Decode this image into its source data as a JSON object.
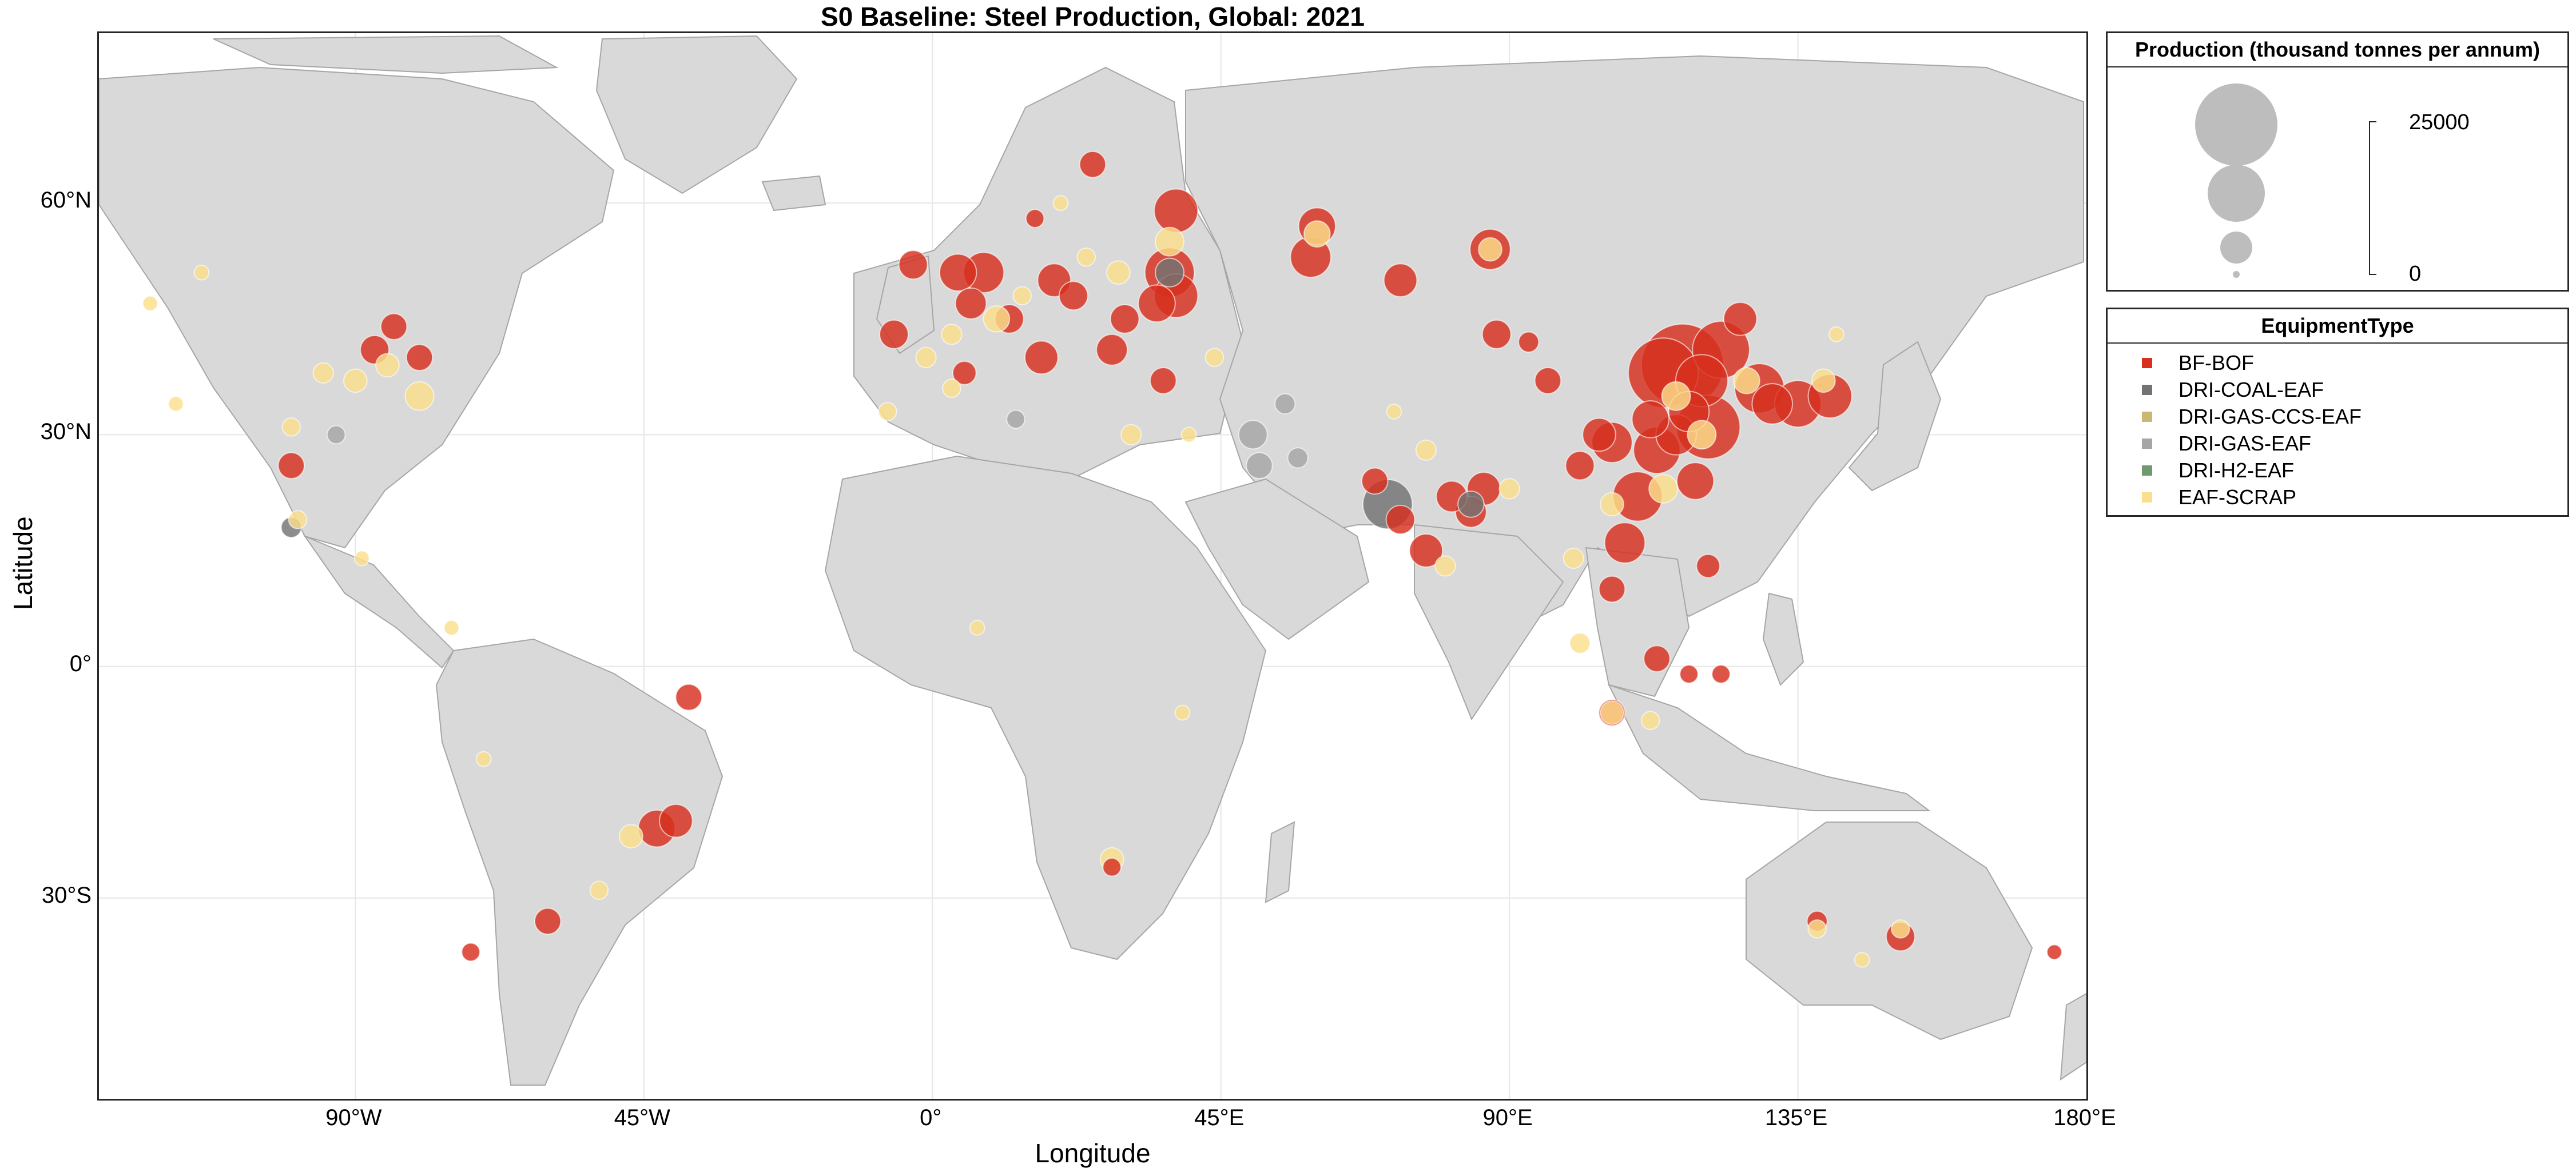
{
  "title": "S0 Baseline: Steel Production, Global: 2021",
  "axes": {
    "xlabel": "Longitude",
    "ylabel": "Latitude",
    "xticks": [
      {
        "lon": -90,
        "label": "90°W"
      },
      {
        "lon": -45,
        "label": "45°W"
      },
      {
        "lon": 0,
        "label": "0°"
      },
      {
        "lon": 45,
        "label": "45°E"
      },
      {
        "lon": 90,
        "label": "90°E"
      },
      {
        "lon": 135,
        "label": "135°E"
      },
      {
        "lon": 180,
        "label": "180°E"
      }
    ],
    "yticks": [
      {
        "lat": 60,
        "label": "60°N"
      },
      {
        "lat": 30,
        "label": "30°N"
      },
      {
        "lat": 0,
        "label": "0°"
      },
      {
        "lat": -30,
        "label": "30°S"
      }
    ],
    "lon_range": [
      -130,
      180
    ],
    "lat_range": [
      -56,
      82
    ]
  },
  "size_legend": {
    "title": "Production (thousand tonnes per annum)",
    "max_label": "25000",
    "min_label": "0"
  },
  "type_legend": {
    "title": "EquipmentType",
    "items": [
      {
        "label": "BF-BOF",
        "color": "#d7301f"
      },
      {
        "label": "DRI-COAL-EAF",
        "color": "#737373"
      },
      {
        "label": "DRI-GAS-CCS-EAF",
        "color": "#c9b873"
      },
      {
        "label": "DRI-GAS-EAF",
        "color": "#a6a6a6"
      },
      {
        "label": "DRI-H2-EAF",
        "color": "#6f9a6f"
      },
      {
        "label": "EAF-SCRAP",
        "color": "#fbdf8c"
      }
    ]
  },
  "colors": {
    "land": "#d9d9d9",
    "ocean": "#ffffff",
    "border": "#a6a6a6",
    "grid": "#e6e6e6"
  },
  "chart_data": {
    "type": "scatter",
    "x_field": "longitude",
    "y_field": "latitude",
    "size_field": "production_kt",
    "points": [
      {
        "lon": 117,
        "lat": 39,
        "kt": 25000,
        "type": "BF-BOF"
      },
      {
        "lon": 114,
        "lat": 38,
        "kt": 18000,
        "type": "BF-BOF"
      },
      {
        "lon": 121,
        "lat": 31,
        "kt": 15000,
        "type": "BF-BOF"
      },
      {
        "lon": 123,
        "lat": 41,
        "kt": 12000,
        "type": "BF-BOF"
      },
      {
        "lon": 120,
        "lat": 37,
        "kt": 10000,
        "type": "BF-BOF"
      },
      {
        "lon": 113,
        "lat": 28,
        "kt": 8000,
        "type": "BF-BOF"
      },
      {
        "lon": 110,
        "lat": 22,
        "kt": 9000,
        "type": "BF-BOF"
      },
      {
        "lon": 108,
        "lat": 16,
        "kt": 6000,
        "type": "BF-BOF"
      },
      {
        "lon": 106,
        "lat": 29,
        "kt": 6000,
        "type": "BF-BOF"
      },
      {
        "lon": 119,
        "lat": 24,
        "kt": 5000,
        "type": "BF-BOF"
      },
      {
        "lon": 126,
        "lat": 45,
        "kt": 4000,
        "type": "BF-BOF"
      },
      {
        "lon": 129,
        "lat": 36,
        "kt": 9000,
        "type": "BF-BOF"
      },
      {
        "lon": 135,
        "lat": 34,
        "kt": 8000,
        "type": "BF-BOF"
      },
      {
        "lon": 140,
        "lat": 35,
        "kt": 7000,
        "type": "BF-BOF"
      },
      {
        "lon": 131,
        "lat": 34,
        "kt": 6000,
        "type": "BF-BOF"
      },
      {
        "lon": 112,
        "lat": 32,
        "kt": 5000,
        "type": "BF-BOF"
      },
      {
        "lon": 104,
        "lat": 30,
        "kt": 4000,
        "type": "BF-BOF"
      },
      {
        "lon": 101,
        "lat": 26,
        "kt": 3000,
        "type": "BF-BOF"
      },
      {
        "lon": 116,
        "lat": 30,
        "kt": 6000,
        "type": "BF-BOF"
      },
      {
        "lon": 118,
        "lat": 33,
        "kt": 6000,
        "type": "BF-BOF"
      },
      {
        "lon": 96,
        "lat": 37,
        "kt": 2500,
        "type": "BF-BOF"
      },
      {
        "lon": 88,
        "lat": 43,
        "kt": 3000,
        "type": "BF-BOF"
      },
      {
        "lon": 93,
        "lat": 42,
        "kt": 1500,
        "type": "BF-BOF"
      },
      {
        "lon": 121,
        "lat": 13,
        "kt": 2000,
        "type": "BF-BOF"
      },
      {
        "lon": 106,
        "lat": 10,
        "kt": 2500,
        "type": "BF-BOF"
      },
      {
        "lon": 113,
        "lat": 1,
        "kt": 2500,
        "type": "BF-BOF"
      },
      {
        "lon": 118,
        "lat": -1,
        "kt": 1200,
        "type": "BF-BOF"
      },
      {
        "lon": 123,
        "lat": -1,
        "kt": 1200,
        "type": "BF-BOF"
      },
      {
        "lon": 106,
        "lat": -6,
        "kt": 2500,
        "type": "BF-BOF"
      },
      {
        "lon": 151,
        "lat": -35,
        "kt": 3000,
        "type": "BF-BOF"
      },
      {
        "lon": 138,
        "lat": -33,
        "kt": 1500,
        "type": "BF-BOF"
      },
      {
        "lon": 175,
        "lat": -37,
        "kt": 800,
        "type": "BF-BOF"
      },
      {
        "lon": 86,
        "lat": 23,
        "kt": 4000,
        "type": "BF-BOF"
      },
      {
        "lon": 84,
        "lat": 20,
        "kt": 3500,
        "type": "BF-BOF"
      },
      {
        "lon": 81,
        "lat": 22,
        "kt": 3500,
        "type": "BF-BOF"
      },
      {
        "lon": 77,
        "lat": 15,
        "kt": 4000,
        "type": "BF-BOF"
      },
      {
        "lon": 73,
        "lat": 19,
        "kt": 3000,
        "type": "BF-BOF"
      },
      {
        "lon": 69,
        "lat": 24,
        "kt": 2500,
        "type": "BF-BOF"
      },
      {
        "lon": 87,
        "lat": 54,
        "kt": 6000,
        "type": "BF-BOF"
      },
      {
        "lon": 73,
        "lat": 50,
        "kt": 4000,
        "type": "BF-BOF"
      },
      {
        "lon": 60,
        "lat": 57,
        "kt": 5000,
        "type": "BF-BOF"
      },
      {
        "lon": 59,
        "lat": 53,
        "kt": 6000,
        "type": "BF-BOF"
      },
      {
        "lon": 38,
        "lat": 59,
        "kt": 7000,
        "type": "BF-BOF"
      },
      {
        "lon": 37,
        "lat": 51,
        "kt": 9000,
        "type": "BF-BOF"
      },
      {
        "lon": 38,
        "lat": 48,
        "kt": 7000,
        "type": "BF-BOF"
      },
      {
        "lon": 35,
        "lat": 47,
        "kt": 5000,
        "type": "BF-BOF"
      },
      {
        "lon": 30,
        "lat": 45,
        "kt": 3000,
        "type": "BF-BOF"
      },
      {
        "lon": 28,
        "lat": 41,
        "kt": 3500,
        "type": "BF-BOF"
      },
      {
        "lon": 36,
        "lat": 37,
        "kt": 2500,
        "type": "BF-BOF"
      },
      {
        "lon": 19,
        "lat": 50,
        "kt": 4000,
        "type": "BF-BOF"
      },
      {
        "lon": 22,
        "lat": 48,
        "kt": 3000,
        "type": "BF-BOF"
      },
      {
        "lon": 8,
        "lat": 51,
        "kt": 6000,
        "type": "BF-BOF"
      },
      {
        "lon": 4,
        "lat": 51,
        "kt": 5000,
        "type": "BF-BOF"
      },
      {
        "lon": 6,
        "lat": 47,
        "kt": 3500,
        "type": "BF-BOF"
      },
      {
        "lon": 17,
        "lat": 40,
        "kt": 4000,
        "type": "BF-BOF"
      },
      {
        "lon": 12,
        "lat": 45,
        "kt": 3000,
        "type": "BF-BOF"
      },
      {
        "lon": -6,
        "lat": 43,
        "kt": 3000,
        "type": "BF-BOF"
      },
      {
        "lon": -3,
        "lat": 52,
        "kt": 3000,
        "type": "BF-BOF"
      },
      {
        "lon": 5,
        "lat": 38,
        "kt": 2000,
        "type": "BF-BOF"
      },
      {
        "lon": 25,
        "lat": 65,
        "kt": 2500,
        "type": "BF-BOF"
      },
      {
        "lon": 16,
        "lat": 58,
        "kt": 1200,
        "type": "BF-BOF"
      },
      {
        "lon": -84,
        "lat": 44,
        "kt": 2500,
        "type": "BF-BOF"
      },
      {
        "lon": -87,
        "lat": 41,
        "kt": 3000,
        "type": "BF-BOF"
      },
      {
        "lon": -80,
        "lat": 40,
        "kt": 2500,
        "type": "BF-BOF"
      },
      {
        "lon": -100,
        "lat": 26,
        "kt": 2500,
        "type": "BF-BOF"
      },
      {
        "lon": -43,
        "lat": -21,
        "kt": 5000,
        "type": "BF-BOF"
      },
      {
        "lon": -40,
        "lat": -20,
        "kt": 4000,
        "type": "BF-BOF"
      },
      {
        "lon": -38,
        "lat": -4,
        "kt": 2500,
        "type": "BF-BOF"
      },
      {
        "lon": -60,
        "lat": -33,
        "kt": 2500,
        "type": "BF-BOF"
      },
      {
        "lon": -72,
        "lat": -37,
        "kt": 1200,
        "type": "BF-BOF"
      },
      {
        "lon": 28,
        "lat": -26,
        "kt": 1200,
        "type": "BF-BOF"
      },
      {
        "lon": 71,
        "lat": 21,
        "kt": 9000,
        "type": "DRI-COAL-EAF"
      },
      {
        "lon": 84,
        "lat": 21,
        "kt": 2500,
        "type": "DRI-COAL-EAF"
      },
      {
        "lon": 37,
        "lat": 51,
        "kt": 3000,
        "type": "DRI-COAL-EAF"
      },
      {
        "lon": -100,
        "lat": 18,
        "kt": 1500,
        "type": "DRI-COAL-EAF"
      },
      {
        "lon": 51,
        "lat": 26,
        "kt": 2500,
        "type": "DRI-GAS-EAF"
      },
      {
        "lon": 50,
        "lat": 30,
        "kt": 3000,
        "type": "DRI-GAS-EAF"
      },
      {
        "lon": 55,
        "lat": 34,
        "kt": 1500,
        "type": "DRI-GAS-EAF"
      },
      {
        "lon": 57,
        "lat": 27,
        "kt": 1500,
        "type": "DRI-GAS-EAF"
      },
      {
        "lon": -93,
        "lat": 30,
        "kt": 1200,
        "type": "DRI-GAS-EAF"
      },
      {
        "lon": 13,
        "lat": 32,
        "kt": 1200,
        "type": "DRI-GAS-EAF"
      },
      {
        "lon": -80,
        "lat": 35,
        "kt": 3000,
        "type": "EAF-SCRAP"
      },
      {
        "lon": -90,
        "lat": 37,
        "kt": 2000,
        "type": "EAF-SCRAP"
      },
      {
        "lon": -95,
        "lat": 38,
        "kt": 1500,
        "type": "EAF-SCRAP"
      },
      {
        "lon": -85,
        "lat": 39,
        "kt": 2000,
        "type": "EAF-SCRAP"
      },
      {
        "lon": -100,
        "lat": 31,
        "kt": 1200,
        "type": "EAF-SCRAP"
      },
      {
        "lon": -118,
        "lat": 34,
        "kt": 800,
        "type": "EAF-SCRAP"
      },
      {
        "lon": -122,
        "lat": 47,
        "kt": 800,
        "type": "EAF-SCRAP"
      },
      {
        "lon": -114,
        "lat": 51,
        "kt": 800,
        "type": "EAF-SCRAP"
      },
      {
        "lon": -99,
        "lat": 19,
        "kt": 1200,
        "type": "EAF-SCRAP"
      },
      {
        "lon": -89,
        "lat": 14,
        "kt": 800,
        "type": "EAF-SCRAP"
      },
      {
        "lon": -75,
        "lat": 5,
        "kt": 800,
        "type": "EAF-SCRAP"
      },
      {
        "lon": -70,
        "lat": -12,
        "kt": 800,
        "type": "EAF-SCRAP"
      },
      {
        "lon": -47,
        "lat": -22,
        "kt": 2000,
        "type": "EAF-SCRAP"
      },
      {
        "lon": -52,
        "lat": -29,
        "kt": 1200,
        "type": "EAF-SCRAP"
      },
      {
        "lon": 3,
        "lat": 43,
        "kt": 1500,
        "type": "EAF-SCRAP"
      },
      {
        "lon": 10,
        "lat": 45,
        "kt": 2500,
        "type": "EAF-SCRAP"
      },
      {
        "lon": -1,
        "lat": 40,
        "kt": 1500,
        "type": "EAF-SCRAP"
      },
      {
        "lon": 14,
        "lat": 48,
        "kt": 1200,
        "type": "EAF-SCRAP"
      },
      {
        "lon": 24,
        "lat": 53,
        "kt": 1200,
        "type": "EAF-SCRAP"
      },
      {
        "lon": 29,
        "lat": 51,
        "kt": 2000,
        "type": "EAF-SCRAP"
      },
      {
        "lon": 37,
        "lat": 55,
        "kt": 3000,
        "type": "EAF-SCRAP"
      },
      {
        "lon": 44,
        "lat": 40,
        "kt": 1200,
        "type": "EAF-SCRAP"
      },
      {
        "lon": 40,
        "lat": 30,
        "kt": 800,
        "type": "EAF-SCRAP"
      },
      {
        "lon": 31,
        "lat": 30,
        "kt": 1500,
        "type": "EAF-SCRAP"
      },
      {
        "lon": 3,
        "lat": 36,
        "kt": 1200,
        "type": "EAF-SCRAP"
      },
      {
        "lon": -7,
        "lat": 33,
        "kt": 1200,
        "type": "EAF-SCRAP"
      },
      {
        "lon": 7,
        "lat": 5,
        "kt": 800,
        "type": "EAF-SCRAP"
      },
      {
        "lon": 39,
        "lat": -6,
        "kt": 800,
        "type": "EAF-SCRAP"
      },
      {
        "lon": 28,
        "lat": -25,
        "kt": 2000,
        "type": "EAF-SCRAP"
      },
      {
        "lon": 77,
        "lat": 28,
        "kt": 1500,
        "type": "EAF-SCRAP"
      },
      {
        "lon": 80,
        "lat": 13,
        "kt": 1500,
        "type": "EAF-SCRAP"
      },
      {
        "lon": 90,
        "lat": 23,
        "kt": 1500,
        "type": "EAF-SCRAP"
      },
      {
        "lon": 100,
        "lat": 14,
        "kt": 1500,
        "type": "EAF-SCRAP"
      },
      {
        "lon": 106,
        "lat": 21,
        "kt": 2000,
        "type": "EAF-SCRAP"
      },
      {
        "lon": 114,
        "lat": 23,
        "kt": 3000,
        "type": "EAF-SCRAP"
      },
      {
        "lon": 120,
        "lat": 30,
        "kt": 3000,
        "type": "EAF-SCRAP"
      },
      {
        "lon": 116,
        "lat": 35,
        "kt": 3000,
        "type": "EAF-SCRAP"
      },
      {
        "lon": 127,
        "lat": 37,
        "kt": 2500,
        "type": "EAF-SCRAP"
      },
      {
        "lon": 139,
        "lat": 37,
        "kt": 2000,
        "type": "EAF-SCRAP"
      },
      {
        "lon": 141,
        "lat": 43,
        "kt": 800,
        "type": "EAF-SCRAP"
      },
      {
        "lon": 106,
        "lat": -6,
        "kt": 2000,
        "type": "EAF-SCRAP"
      },
      {
        "lon": 112,
        "lat": -7,
        "kt": 1200,
        "type": "EAF-SCRAP"
      },
      {
        "lon": 101,
        "lat": 3,
        "kt": 1500,
        "type": "EAF-SCRAP"
      },
      {
        "lon": 138,
        "lat": -34,
        "kt": 1200,
        "type": "EAF-SCRAP"
      },
      {
        "lon": 151,
        "lat": -34,
        "kt": 1200,
        "type": "EAF-SCRAP"
      },
      {
        "lon": 145,
        "lat": -38,
        "kt": 800,
        "type": "EAF-SCRAP"
      },
      {
        "lon": 72,
        "lat": 33,
        "kt": 800,
        "type": "EAF-SCRAP"
      },
      {
        "lon": 60,
        "lat": 56,
        "kt": 2500,
        "type": "EAF-SCRAP"
      },
      {
        "lon": 87,
        "lat": 54,
        "kt": 2000,
        "type": "EAF-SCRAP"
      },
      {
        "lon": 20,
        "lat": 60,
        "kt": 800,
        "type": "EAF-SCRAP"
      }
    ]
  }
}
